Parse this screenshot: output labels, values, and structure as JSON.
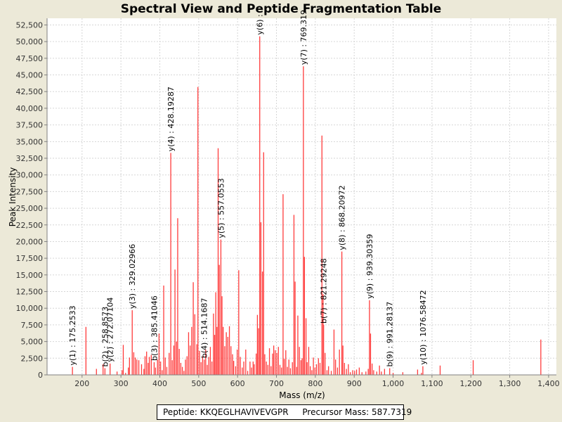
{
  "chart_data": {
    "type": "bar",
    "title": "Spectral View and Peptide Fragmentation Table",
    "xlabel": "Mass (m/z)",
    "ylabel": "Peak Intensity",
    "xlim": [
      110,
      1420
    ],
    "ylim": [
      0,
      53500
    ],
    "xticks": [
      200,
      300,
      400,
      500,
      600,
      700,
      800,
      900,
      1000,
      1100,
      1200,
      1300,
      1400
    ],
    "xtick_labels": [
      "200",
      "300",
      "400",
      "500",
      "600",
      "700",
      "800",
      "900",
      "1,000",
      "1,100",
      "1,200",
      "1,300",
      "1,400"
    ],
    "yticks": [
      0,
      2500,
      5000,
      7500,
      10000,
      12500,
      15000,
      17500,
      20000,
      22500,
      25000,
      27500,
      30000,
      32500,
      35000,
      37500,
      40000,
      42500,
      45000,
      47500,
      50000,
      52500
    ],
    "ytick_labels": [
      "0",
      "2,500",
      "5,000",
      "7,500",
      "10,000",
      "12,500",
      "15,000",
      "17,500",
      "20,000",
      "22,500",
      "25,000",
      "27,500",
      "30,000",
      "32,500",
      "35,000",
      "37,500",
      "40,000",
      "42,500",
      "45,000",
      "47,500",
      "50,000",
      "52,500"
    ],
    "grid": true,
    "peak_color": "#ff3b3b",
    "peaks": [
      [
        175.25,
        1200
      ],
      [
        210.0,
        7200
      ],
      [
        237.0,
        900
      ],
      [
        254.0,
        1600
      ],
      [
        258.86,
        1000
      ],
      [
        272.07,
        1700
      ],
      [
        290.0,
        500
      ],
      [
        303.0,
        700
      ],
      [
        306.0,
        4500
      ],
      [
        312.0,
        300
      ],
      [
        319.0,
        1100
      ],
      [
        322.0,
        2600
      ],
      [
        329.03,
        9700
      ],
      [
        333.0,
        3400
      ],
      [
        337.0,
        2600
      ],
      [
        341.0,
        2300
      ],
      [
        346.0,
        2200
      ],
      [
        353.0,
        1600
      ],
      [
        359.0,
        900
      ],
      [
        362.0,
        2800
      ],
      [
        366.0,
        3500
      ],
      [
        370.0,
        1800
      ],
      [
        373.0,
        2700
      ],
      [
        378.0,
        3000
      ],
      [
        385.41,
        1900
      ],
      [
        389.0,
        1100
      ],
      [
        394.0,
        2300
      ],
      [
        398.0,
        6200
      ],
      [
        402.0,
        2000
      ],
      [
        406.0,
        700
      ],
      [
        410.0,
        13400
      ],
      [
        414.0,
        2600
      ],
      [
        418.0,
        1200
      ],
      [
        424.0,
        3300
      ],
      [
        428.19,
        33300
      ],
      [
        432.0,
        2200
      ],
      [
        436.0,
        4400
      ],
      [
        439.0,
        15800
      ],
      [
        443.0,
        5000
      ],
      [
        446.0,
        23500
      ],
      [
        450.0,
        3900
      ],
      [
        454.0,
        1800
      ],
      [
        458.0,
        1200
      ],
      [
        462.0,
        600
      ],
      [
        466.0,
        2300
      ],
      [
        470.0,
        2800
      ],
      [
        474.0,
        6400
      ],
      [
        478.0,
        4400
      ],
      [
        482.0,
        7200
      ],
      [
        486.0,
        13900
      ],
      [
        490.0,
        9100
      ],
      [
        495.0,
        4600
      ],
      [
        498.0,
        43200
      ],
      [
        502.0,
        3600
      ],
      [
        506.0,
        1900
      ],
      [
        510.0,
        2800
      ],
      [
        514.17,
        2300
      ],
      [
        518.0,
        3800
      ],
      [
        522.0,
        1500
      ],
      [
        526.0,
        2700
      ],
      [
        530.0,
        4200
      ],
      [
        534.0,
        2000
      ],
      [
        538.0,
        9200
      ],
      [
        541.0,
        6000
      ],
      [
        544.0,
        12400
      ],
      [
        547.0,
        7200
      ],
      [
        550.0,
        34000
      ],
      [
        553.0,
        16500
      ],
      [
        557.06,
        20300
      ],
      [
        560.0,
        11800
      ],
      [
        563.0,
        7200
      ],
      [
        567.0,
        4300
      ],
      [
        571.0,
        6400
      ],
      [
        575.0,
        5700
      ],
      [
        579.0,
        7300
      ],
      [
        583.0,
        4300
      ],
      [
        587.0,
        3100
      ],
      [
        590.0,
        2100
      ],
      [
        595.0,
        1300
      ],
      [
        599.0,
        3800
      ],
      [
        603.0,
        15700
      ],
      [
        607.0,
        2700
      ],
      [
        612.0,
        1100
      ],
      [
        616.0,
        2000
      ],
      [
        621.0,
        3800
      ],
      [
        626.0,
        600
      ],
      [
        632.0,
        2000
      ],
      [
        636.0,
        1100
      ],
      [
        640.0,
        2000
      ],
      [
        643.0,
        1600
      ],
      [
        648.0,
        3200
      ],
      [
        651.0,
        9000
      ],
      [
        654.0,
        7000
      ],
      [
        657.0,
        50800
      ],
      [
        660.0,
        22900
      ],
      [
        664.0,
        15500
      ],
      [
        667.0,
        33400
      ],
      [
        670.0,
        3100
      ],
      [
        674.0,
        2000
      ],
      [
        678.0,
        1500
      ],
      [
        682.0,
        4000
      ],
      [
        686.0,
        1300
      ],
      [
        690.0,
        3200
      ],
      [
        693.0,
        4400
      ],
      [
        697.0,
        3700
      ],
      [
        701.0,
        3300
      ],
      [
        705.0,
        4200
      ],
      [
        709.0,
        1500
      ],
      [
        713.0,
        1100
      ],
      [
        717.0,
        27100
      ],
      [
        720.0,
        2400
      ],
      [
        724.0,
        3700
      ],
      [
        728.0,
        1200
      ],
      [
        732.0,
        2300
      ],
      [
        736.0,
        1000
      ],
      [
        741.0,
        1900
      ],
      [
        745.0,
        24000
      ],
      [
        748.0,
        14000
      ],
      [
        752.0,
        1200
      ],
      [
        755.0,
        8900
      ],
      [
        759.0,
        4200
      ],
      [
        763.0,
        2200
      ],
      [
        766.0,
        2500
      ],
      [
        769.32,
        46300
      ],
      [
        772.0,
        17700
      ],
      [
        776.0,
        8500
      ],
      [
        779.0,
        1900
      ],
      [
        783.0,
        4200
      ],
      [
        787.0,
        1300
      ],
      [
        791.0,
        700
      ],
      [
        795.0,
        2600
      ],
      [
        799.0,
        1100
      ],
      [
        803.0,
        1600
      ],
      [
        808.0,
        2500
      ],
      [
        812.0,
        1800
      ],
      [
        817.0,
        35900
      ],
      [
        820.0,
        12100
      ],
      [
        821.29,
        7500
      ],
      [
        825.0,
        3300
      ],
      [
        830.0,
        700
      ],
      [
        834.0,
        1300
      ],
      [
        841.0,
        600
      ],
      [
        848.0,
        6800
      ],
      [
        852.0,
        2300
      ],
      [
        857.0,
        1100
      ],
      [
        862.0,
        3800
      ],
      [
        868.21,
        18500
      ],
      [
        871.0,
        4400
      ],
      [
        875.0,
        1800
      ],
      [
        880.0,
        900
      ],
      [
        885.0,
        1600
      ],
      [
        890.0,
        400
      ],
      [
        896.0,
        700
      ],
      [
        901.0,
        600
      ],
      [
        906.0,
        800
      ],
      [
        913.0,
        1100
      ],
      [
        920.0,
        400
      ],
      [
        930.0,
        500
      ],
      [
        936.0,
        900
      ],
      [
        939.3,
        11200
      ],
      [
        942.0,
        6200
      ],
      [
        946.0,
        1700
      ],
      [
        950.0,
        700
      ],
      [
        958.0,
        500
      ],
      [
        965.0,
        1400
      ],
      [
        970.0,
        500
      ],
      [
        978.0,
        900
      ],
      [
        991.28,
        1000
      ],
      [
        1000.0,
        300
      ],
      [
        1025.0,
        400
      ],
      [
        1063.0,
        800
      ],
      [
        1073.0,
        300
      ],
      [
        1076.58,
        1300
      ],
      [
        1121.0,
        1400
      ],
      [
        1206.0,
        2200
      ],
      [
        1380.0,
        5300
      ]
    ],
    "annotations": [
      {
        "text": "y(1) : 175.2533",
        "x": 175.25,
        "y": 1200
      },
      {
        "text": "b(2) : 258.8573",
        "x": 258.86,
        "y": 1000
      },
      {
        "text": "y(2) : 272.07104",
        "x": 272.07,
        "y": 1700
      },
      {
        "text": "y(3) : 329.02966",
        "x": 329.03,
        "y": 9700
      },
      {
        "text": "b(3) : 385.41046",
        "x": 385.41,
        "y": 1900
      },
      {
        "text": "y(4) : 428.19287",
        "x": 428.19,
        "y": 33300
      },
      {
        "text": "b(4) : 514.1687",
        "x": 514.17,
        "y": 2300
      },
      {
        "text": "y(5) : 557.0553",
        "x": 557.06,
        "y": 20300
      },
      {
        "text": "y(6) : ",
        "x": 657.0,
        "y": 50800
      },
      {
        "text": "y(7) : 769.319",
        "x": 769.32,
        "y": 46300
      },
      {
        "text": "b(7) : 821.29248",
        "x": 821.29,
        "y": 7500
      },
      {
        "text": "y(8) : 868.20972",
        "x": 868.21,
        "y": 18500
      },
      {
        "text": "y(9) : 939.30359",
        "x": 939.3,
        "y": 11200
      },
      {
        "text": "b(9) : 991.28137",
        "x": 991.28,
        "y": 1000
      },
      {
        "text": "y(10) : 1076.58472",
        "x": 1076.58,
        "y": 1300
      }
    ]
  },
  "footer": {
    "peptide": "Peptide: KKQEGLHAVIVEVGPR",
    "precursor": "Precursor Mass: 587.7319"
  }
}
